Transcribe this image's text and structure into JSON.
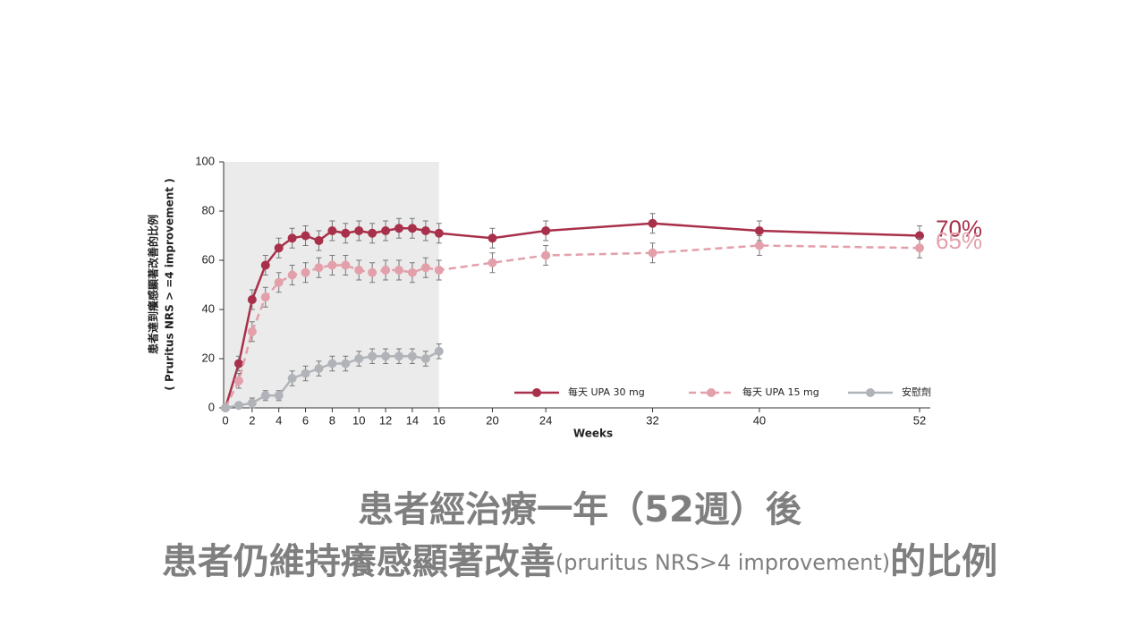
{
  "chart_data": {
    "type": "line",
    "ylabel": [
      "患者達到癢感顯著改善的比例",
      "( Pruritus NRS > =4 improvement )"
    ],
    "xlabel": "Weeks",
    "xlim": [
      0,
      52
    ],
    "ylim": [
      0,
      100
    ],
    "xticks": [
      0,
      2,
      4,
      6,
      8,
      10,
      12,
      14,
      16,
      20,
      24,
      32,
      40,
      52
    ],
    "yticks": [
      0,
      20,
      40,
      60,
      80,
      100
    ],
    "shaded_xrange": [
      0,
      16
    ],
    "shade_color": "#ebebeb",
    "series": [
      {
        "name": "每天 UPA 30 mg",
        "color": "#a8304a",
        "dash": false,
        "end_label": "70%",
        "x": [
          0,
          1,
          2,
          3,
          4,
          5,
          6,
          7,
          8,
          9,
          10,
          11,
          12,
          13,
          14,
          15,
          16,
          20,
          24,
          32,
          40,
          52
        ],
        "values": [
          0,
          18,
          44,
          58,
          65,
          69,
          70,
          68,
          72,
          71,
          72,
          71,
          72,
          73,
          73,
          72,
          71,
          69,
          72,
          75,
          72,
          70
        ],
        "errors": [
          null,
          3,
          4,
          4,
          4,
          4,
          4,
          4,
          4,
          4,
          4,
          4,
          4,
          4,
          4,
          4,
          4,
          4,
          4,
          4,
          4,
          4
        ]
      },
      {
        "name": "每天 UPA 15 mg",
        "color": "#e3a0ab",
        "dash": true,
        "end_label": "65%",
        "x": [
          0,
          1,
          2,
          3,
          4,
          5,
          6,
          7,
          8,
          9,
          10,
          11,
          12,
          13,
          14,
          15,
          16,
          20,
          24,
          32,
          40,
          52
        ],
        "values": [
          0,
          11,
          31,
          45,
          51,
          54,
          55,
          57,
          58,
          58,
          56,
          55,
          56,
          56,
          55,
          57,
          56,
          59,
          62,
          63,
          66,
          65
        ],
        "errors": [
          null,
          3,
          4,
          4,
          4,
          4,
          4,
          4,
          4,
          4,
          4,
          4,
          4,
          4,
          4,
          4,
          4,
          4,
          4,
          4,
          4,
          4
        ]
      },
      {
        "name": "安慰劑",
        "color": "#b0b4b8",
        "dash": false,
        "x": [
          0,
          1,
          2,
          3,
          4,
          5,
          6,
          7,
          8,
          9,
          10,
          11,
          12,
          13,
          14,
          15,
          16
        ],
        "values": [
          0,
          1,
          2,
          5,
          5,
          12,
          14,
          16,
          18,
          18,
          20,
          21,
          21,
          21,
          21,
          20,
          23
        ],
        "errors": [
          null,
          1,
          2,
          2,
          2,
          3,
          3,
          3,
          3,
          3,
          3,
          3,
          3,
          3,
          3,
          3,
          3
        ]
      }
    ]
  },
  "caption": {
    "line1": "患者經治療一年（52週）後",
    "line2": [
      "患者仍維持癢感顯著改善",
      "(pruritus NRS>4 improvement)",
      "的比例"
    ]
  }
}
